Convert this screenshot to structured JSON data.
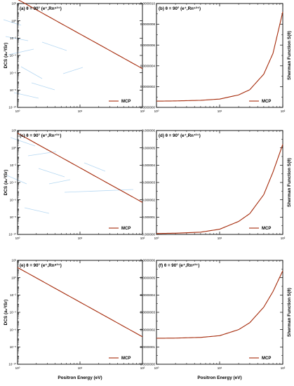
{
  "colors": {
    "series": "#a52a0a",
    "frame": "#000000",
    "artifact": "#7ab8e8"
  },
  "chart_data": [
    {
      "id": "a",
      "type": "line",
      "panel_label": "(a) θ = 90° (e⁺,Rn⁵²⁺)",
      "xlabel": "",
      "ylabel": "DCS (a₀²/Sr)",
      "x_scale": "log",
      "y_scale": "log",
      "xlim": [
        1,
        100
      ],
      "ylim": [
        1e-10,
        100.0
      ],
      "x_ticks": [
        1,
        10,
        100
      ],
      "x_tick_labels": [
        "10⁰",
        "10¹",
        "10²"
      ],
      "y_ticks": [
        100.0,
        1.0,
        0.01,
        0.0001,
        1e-06,
        1e-08,
        1e-10
      ],
      "y_tick_labels": [
        "10²",
        "10⁰",
        "10⁻²",
        "10⁻⁴",
        "10⁻⁶",
        "10⁻⁸",
        "10⁻¹⁰"
      ],
      "legend": "bottom-right",
      "series": [
        {
          "name": "MCP",
          "x": [
            1,
            2,
            5,
            10,
            20,
            50,
            100
          ],
          "y": [
            300,
            19,
            0.48,
            0.03,
            0.0019,
            4.8e-05,
            3e-06
          ]
        }
      ]
    },
    {
      "id": "b",
      "type": "line",
      "panel_label": "(b) θ = 90° (e⁺,Rn⁵²⁺)",
      "xlabel": "",
      "ylabel": "Sherman Function S(θ)",
      "x_scale": "log",
      "y_scale": "linear",
      "xlim": [
        1,
        100
      ],
      "ylim": [
        0,
        1e-06
      ],
      "x_ticks": [
        1,
        10,
        100
      ],
      "x_tick_labels": [
        "10⁰",
        "10¹",
        "10²"
      ],
      "y_ticks": [
        0,
        2e-07,
        4e-07,
        6e-07,
        8e-07,
        1e-06
      ],
      "y_tick_labels": [
        "0.0000000",
        "0.0000002",
        "0.0000004",
        "0.0000006",
        "0.0000008",
        "0.0000010"
      ],
      "legend": "bottom-right",
      "series": [
        {
          "name": "MCP",
          "x": [
            1,
            2,
            5,
            10,
            20,
            30,
            50,
            70,
            100
          ],
          "y": [
            6e-08,
            6.2e-08,
            6.8e-08,
            8e-08,
            1.2e-07,
            1.7e-07,
            3.2e-07,
            5.2e-07,
            9.2e-07
          ]
        }
      ]
    },
    {
      "id": "c",
      "type": "line",
      "panel_label": "(c) θ = 90° (e⁺,Rn⁷³⁺)",
      "xlabel": "",
      "ylabel": "DCS (a₀²/Sr)",
      "x_scale": "log",
      "y_scale": "log",
      "xlim": [
        1,
        100
      ],
      "ylim": [
        1e-10,
        100.0
      ],
      "x_ticks": [
        1,
        10,
        100
      ],
      "x_tick_labels": [
        "10⁰",
        "10¹",
        "10²"
      ],
      "y_ticks": [
        100.0,
        1.0,
        0.01,
        0.0001,
        1e-06,
        1e-08,
        1e-10
      ],
      "y_tick_labels": [
        "10²",
        "10⁰",
        "10⁻²",
        "10⁻⁴",
        "10⁻⁶",
        "10⁻⁸",
        "10⁻¹⁰"
      ],
      "legend": "bottom-right",
      "series": [
        {
          "name": "MCP",
          "x": [
            1,
            2,
            5,
            10,
            20,
            50,
            100
          ],
          "y": [
            50,
            3.1,
            0.08,
            0.005,
            0.00031,
            8e-06,
            5e-07
          ]
        }
      ]
    },
    {
      "id": "d",
      "type": "line",
      "panel_label": "(d) θ = 90° (e⁺,Rn⁷²⁺)",
      "xlabel": "",
      "ylabel": "Sherman Function S(θ)",
      "x_scale": "log",
      "y_scale": "linear",
      "xlim": [
        1,
        100
      ],
      "ylim": [
        0,
        6e-06
      ],
      "x_ticks": [
        1,
        10,
        100
      ],
      "x_tick_labels": [
        "10⁰",
        "10¹",
        "10²"
      ],
      "y_ticks": [
        0,
        1e-06,
        2e-06,
        3e-06,
        4e-06,
        5e-06,
        6e-06
      ],
      "y_tick_labels": [
        "0.000000",
        "0.000001",
        "0.000002",
        "0.000003",
        "0.000004",
        "0.000005",
        "0.000006"
      ],
      "legend": "bottom-right",
      "series": [
        {
          "name": "MCP",
          "x": [
            1,
            2,
            5,
            10,
            20,
            30,
            50,
            70,
            100
          ],
          "y": [
            5e-08,
            7e-08,
            1.3e-07,
            3e-07,
            7.5e-07,
            1.2e-06,
            2.3e-06,
            3.6e-06,
            5.2e-06
          ]
        }
      ]
    },
    {
      "id": "e",
      "type": "line",
      "panel_label": "(e) θ = 90° (e⁺,Rn⁸³⁺)",
      "xlabel": "Positron Energy (eV)",
      "ylabel": "DCS (a₀²/Sr)",
      "x_scale": "log",
      "y_scale": "log",
      "xlim": [
        1,
        100
      ],
      "ylim": [
        1e-10,
        100.0
      ],
      "x_ticks": [
        1,
        10,
        100
      ],
      "x_tick_labels": [
        "10⁰",
        "10¹",
        "10²"
      ],
      "y_ticks": [
        100.0,
        1.0,
        0.01,
        0.0001,
        1e-06,
        1e-08,
        1e-10
      ],
      "y_tick_labels": [
        "10²",
        "10⁰",
        "10⁻²",
        "10⁻⁴",
        "10⁻⁶",
        "10⁻⁸",
        "10⁻¹⁰"
      ],
      "legend": "bottom-right",
      "series": [
        {
          "name": "MCP",
          "x": [
            1,
            2,
            5,
            10,
            20,
            50,
            100
          ],
          "y": [
            15,
            0.94,
            0.024,
            0.0015,
            9.4e-05,
            2.4e-06,
            1.5e-07
          ]
        }
      ]
    },
    {
      "id": "f",
      "type": "line",
      "panel_label": "(f) θ = 90° (e⁺,Rn⁸³⁺)",
      "xlabel": "Positron Energy (eV)",
      "ylabel": "Sherman Function S(θ)",
      "x_scale": "log",
      "y_scale": "linear",
      "xlim": [
        1,
        100
      ],
      "ylim": [
        0,
        6e-07
      ],
      "x_ticks": [
        1,
        10,
        100
      ],
      "x_tick_labels": [
        "10⁰",
        "10¹",
        "10²"
      ],
      "y_ticks": [
        0,
        1e-07,
        2e-07,
        3e-07,
        4e-07,
        5e-07,
        6e-07
      ],
      "y_tick_labels": [
        "0.0000000",
        "0.0000001",
        "0.0000002",
        "0.0000003",
        "0.0000004",
        "0.0000005",
        "0.0000006"
      ],
      "legend": "bottom-right",
      "series": [
        {
          "name": "MCP",
          "x": [
            1,
            2,
            5,
            10,
            20,
            30,
            50,
            70,
            100
          ],
          "y": [
            1.5e-07,
            1.51e-07,
            1.55e-07,
            1.65e-07,
            2e-07,
            2.4e-07,
            3.3e-07,
            4.2e-07,
            5.4e-07
          ]
        }
      ]
    }
  ]
}
